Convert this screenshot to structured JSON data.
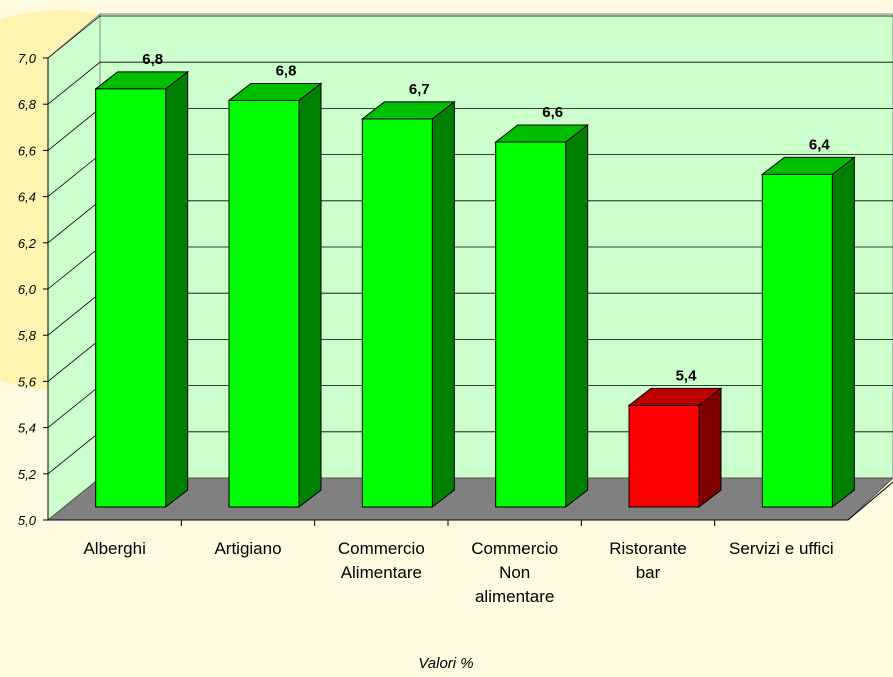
{
  "chart_data": {
    "type": "bar3d",
    "x_label": "Valori %",
    "categories": [
      "Alberghi",
      "Artigiano",
      "Commercio Alimentare",
      "Commercio Non alimentare",
      "Ristorante bar",
      "Servizi e uffici"
    ],
    "values": [
      6.81,
      6.76,
      6.68,
      6.58,
      5.44,
      6.44
    ],
    "value_labels": [
      "6,8",
      "6,8",
      "6,7",
      "6,6",
      "5,4",
      "6,4"
    ],
    "colors": [
      "#00ff00",
      "#00ff00",
      "#00ff00",
      "#00ff00",
      "#ff0000",
      "#00ff00"
    ],
    "ylim": [
      5.0,
      7.0
    ],
    "yticks": [
      {
        "value": 5.0,
        "label": "5,0"
      },
      {
        "value": 5.2,
        "label": "5,2"
      },
      {
        "value": 5.4,
        "label": "5,4"
      },
      {
        "value": 5.6,
        "label": "5,6"
      },
      {
        "value": 5.8,
        "label": "5,8"
      },
      {
        "value": 6.0,
        "label": "6,0"
      },
      {
        "value": 6.2,
        "label": "6,2"
      },
      {
        "value": 6.4,
        "label": "6,4"
      },
      {
        "value": 6.6,
        "label": "6,6"
      },
      {
        "value": 6.8,
        "label": "6,8"
      },
      {
        "value": 7.0,
        "label": "7,0"
      }
    ],
    "grid": true
  }
}
